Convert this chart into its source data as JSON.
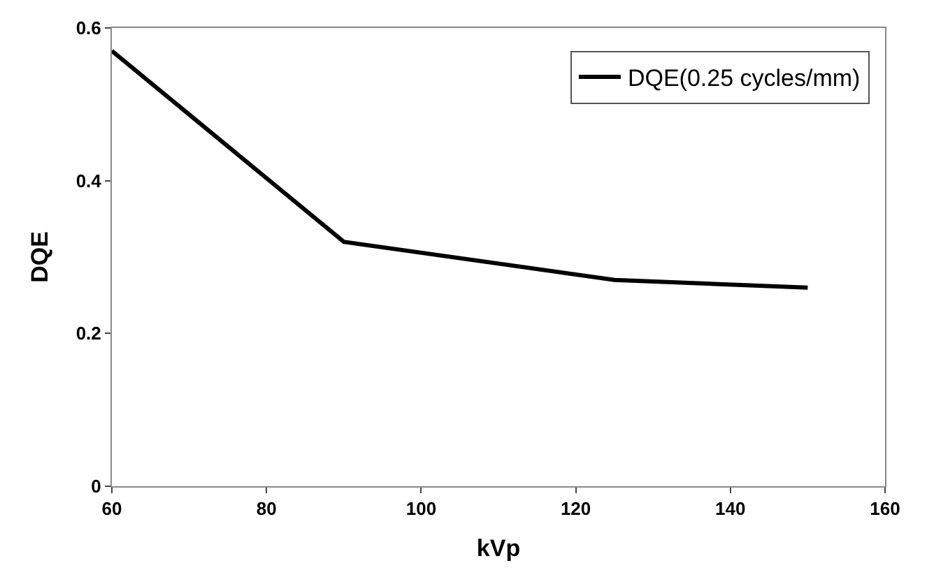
{
  "chart_data": {
    "type": "line",
    "xlabel": "kVp",
    "ylabel": "DQE",
    "x": [
      60,
      90,
      125,
      150
    ],
    "series": [
      {
        "name": "DQE(0.25 cycles/mm)",
        "color": "#000000",
        "values": [
          0.57,
          0.32,
          0.27,
          0.26
        ]
      }
    ],
    "xlim": [
      60,
      160
    ],
    "xticks": [
      60,
      80,
      100,
      120,
      140,
      160
    ],
    "ylim": [
      0,
      0.6
    ],
    "yticks": [
      0,
      0.2,
      0.4,
      0.6
    ],
    "legend": "top right",
    "marker": "none",
    "line_style": "solid"
  }
}
